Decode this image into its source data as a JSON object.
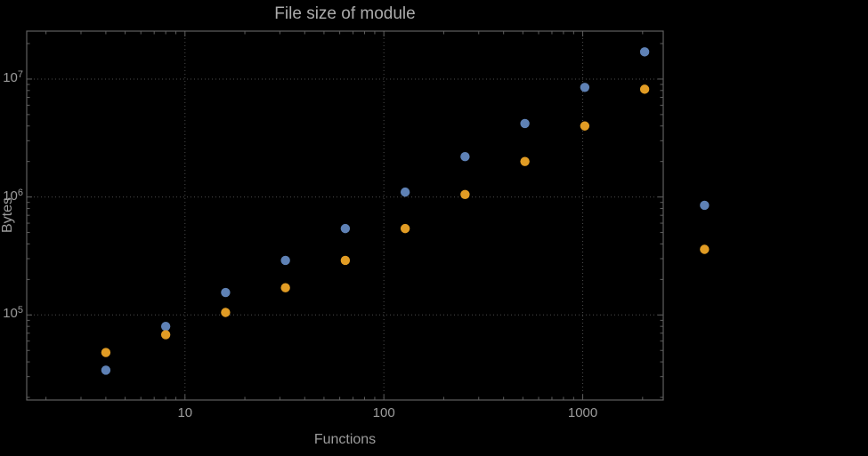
{
  "chart_data": {
    "type": "scatter",
    "title": "File size of module",
    "xlabel": "Functions",
    "ylabel": "Bytes",
    "xscale": "log",
    "yscale": "log",
    "xlim": [
      1.6,
      2540
    ],
    "ylim": [
      19000,
      25500000
    ],
    "grid": true,
    "legend": false,
    "x": [
      4,
      8,
      16,
      32,
      64,
      128,
      256,
      512,
      1024,
      2048,
      4096
    ],
    "series": [
      {
        "name": "blue",
        "color": "#5e81b5",
        "values": [
          34000,
          80000,
          155000,
          290000,
          540000,
          1100000,
          2200000,
          4200000,
          8500000,
          17000000,
          850000
        ]
      },
      {
        "name": "orange",
        "color": "#e19c24",
        "values": [
          48000,
          68000,
          105000,
          170000,
          290000,
          540000,
          1050000,
          2000000,
          4000000,
          8200000,
          360000
        ]
      }
    ],
    "xticks": [
      {
        "v": 10,
        "label": "10"
      },
      {
        "v": 100,
        "label": "100"
      },
      {
        "v": 1000,
        "label": "1000"
      }
    ],
    "yticks": [
      {
        "v": 100000,
        "base": "10",
        "exp": "5"
      },
      {
        "v": 1000000,
        "base": "10",
        "exp": "6"
      },
      {
        "v": 10000000,
        "base": "10",
        "exp": "7"
      }
    ],
    "colors": {
      "background": "#000000",
      "frame": "#5f5f5f",
      "grid": "#4c4c4c",
      "text": "#9c9c9c",
      "title": "#ababab"
    }
  }
}
